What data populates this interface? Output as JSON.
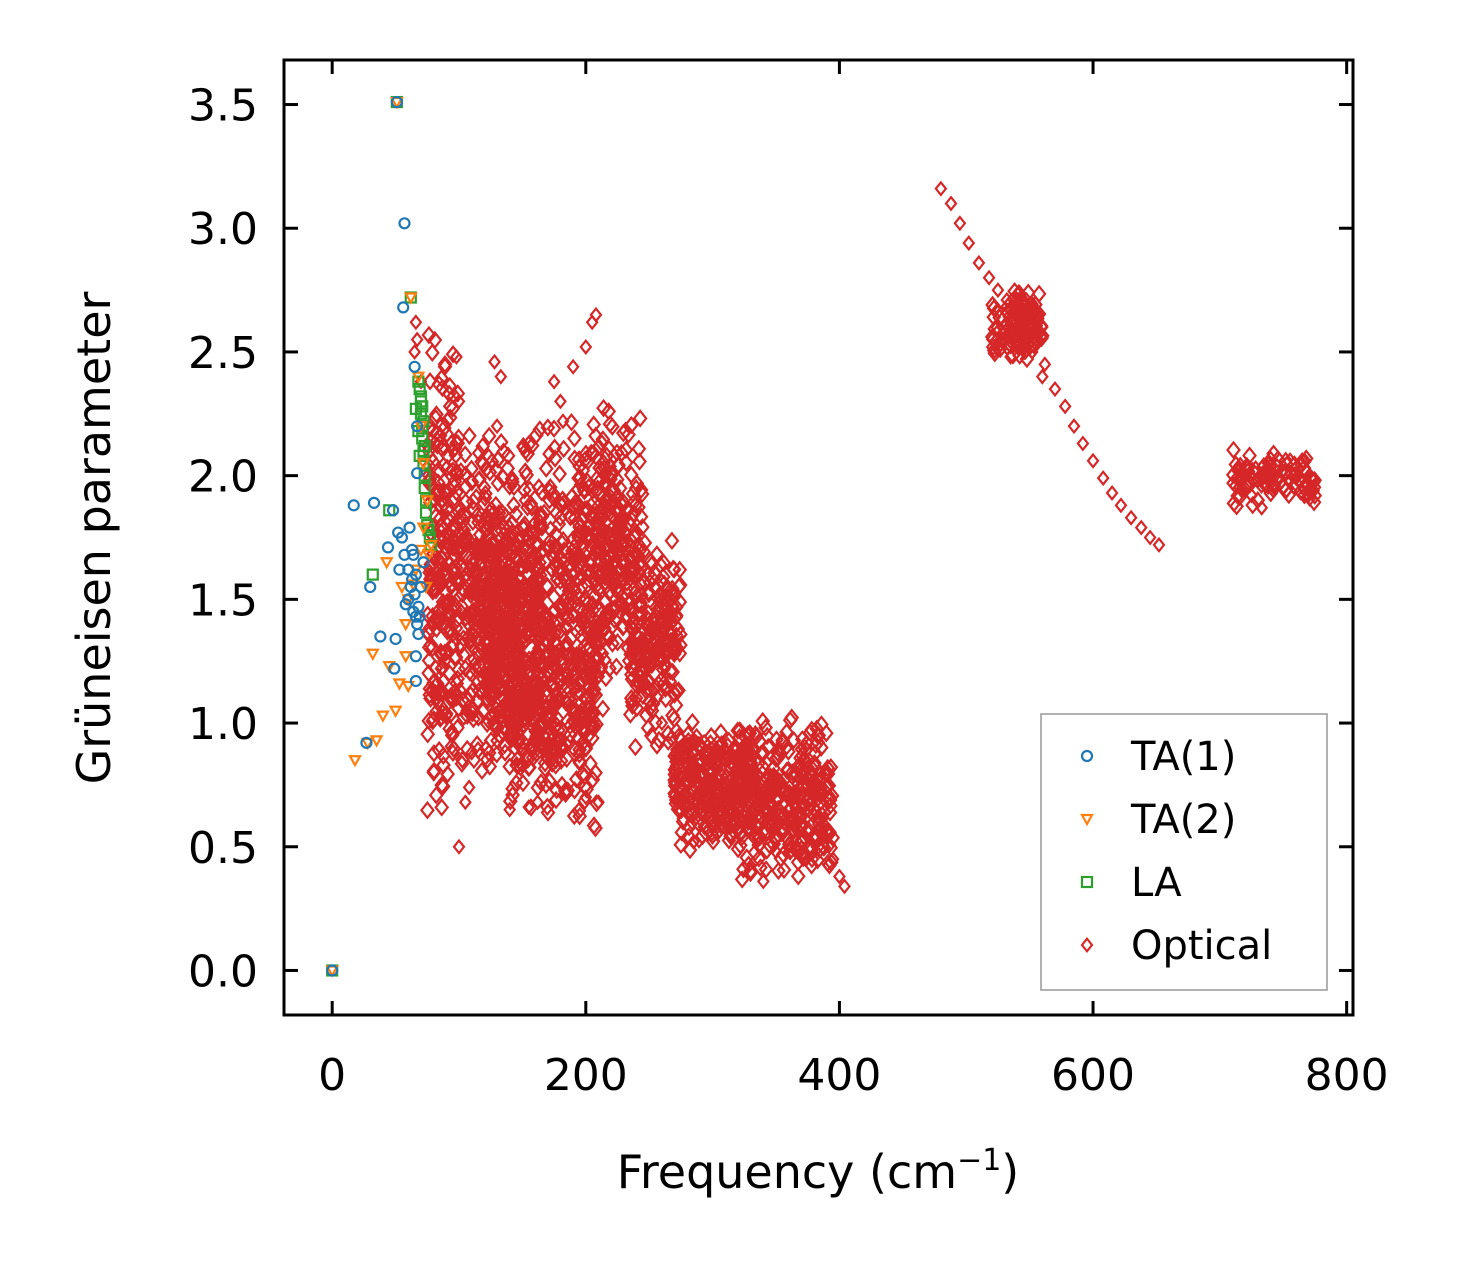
{
  "chart_data": {
    "type": "scatter",
    "title": "",
    "xlabel": "Frequency (cm",
    "xlabel_sup": "−1",
    "xlabel_close": ")",
    "ylabel": "Grüneisen parameter",
    "xlim": [
      -38,
      805
    ],
    "ylim": [
      -0.18,
      3.68
    ],
    "xticks": [
      0,
      200,
      400,
      600,
      800
    ],
    "xtick_labels": [
      "0",
      "200",
      "400",
      "600",
      "800"
    ],
    "yticks": [
      0.0,
      0.5,
      1.0,
      1.5,
      2.0,
      2.5,
      3.0,
      3.5
    ],
    "ytick_labels": [
      "0.0",
      "0.5",
      "1.0",
      "1.5",
      "2.0",
      "2.5",
      "3.0",
      "3.5"
    ],
    "grid": false,
    "legend_position": "lower-right",
    "series": [
      {
        "name": "TA(1)",
        "marker": "circle",
        "color": "#1f77b4",
        "points": [
          [
            0,
            0
          ],
          [
            17,
            1.88
          ],
          [
            33,
            1.89
          ],
          [
            38,
            1.35
          ],
          [
            48,
            1.86
          ],
          [
            50,
            1.34
          ],
          [
            52,
            1.77
          ],
          [
            30,
            1.55
          ],
          [
            44,
            1.71
          ],
          [
            55,
            1.75
          ],
          [
            57,
            1.68
          ],
          [
            58,
            1.48
          ],
          [
            60,
            1.62
          ],
          [
            61,
            1.79
          ],
          [
            62,
            1.55
          ],
          [
            63,
            1.7
          ],
          [
            64,
            1.45
          ],
          [
            65,
            1.52
          ],
          [
            66,
            1.6
          ],
          [
            67,
            1.4
          ],
          [
            68,
            1.36
          ],
          [
            69,
            1.43
          ],
          [
            70,
            1.55
          ],
          [
            72,
            1.65
          ],
          [
            53,
            1.62
          ],
          [
            49,
            1.22
          ],
          [
            66,
            1.27
          ],
          [
            66,
            1.17
          ],
          [
            27,
            0.92
          ],
          [
            57,
            3.02
          ],
          [
            56,
            2.68
          ],
          [
            65,
            2.44
          ],
          [
            67,
            2.2
          ],
          [
            67,
            2.01
          ],
          [
            51,
            3.51
          ],
          [
            60,
            1.5
          ],
          [
            63,
            1.58
          ],
          [
            64,
            1.68
          ],
          [
            66,
            1.43
          ],
          [
            68,
            1.47
          ]
        ]
      },
      {
        "name": "TA(2)",
        "marker": "triangle-down",
        "color": "#ff7f0e",
        "points": [
          [
            0,
            0
          ],
          [
            18,
            0.85
          ],
          [
            28,
            0.92
          ],
          [
            35,
            0.93
          ],
          [
            40,
            1.03
          ],
          [
            45,
            1.23
          ],
          [
            50,
            1.05
          ],
          [
            53,
            1.16
          ],
          [
            60,
            1.15
          ],
          [
            58,
            1.27
          ],
          [
            32,
            1.28
          ],
          [
            58,
            1.4
          ],
          [
            60,
            1.5
          ],
          [
            64,
            1.56
          ],
          [
            66,
            1.62
          ],
          [
            70,
            1.7
          ],
          [
            72,
            1.79
          ],
          [
            75,
            1.9
          ],
          [
            62,
            2.72
          ],
          [
            68,
            2.4
          ],
          [
            70,
            2.2
          ],
          [
            72,
            2.05
          ],
          [
            74,
            1.55
          ],
          [
            76,
            1.68
          ],
          [
            78,
            1.72
          ],
          [
            51,
            3.51
          ],
          [
            43,
            1.65
          ],
          [
            55,
            1.55
          ]
        ]
      },
      {
        "name": "LA",
        "marker": "square",
        "color": "#2ca02c",
        "points": [
          [
            0,
            0
          ],
          [
            32,
            1.6
          ],
          [
            45,
            1.86
          ],
          [
            51,
            3.51
          ],
          [
            62,
            2.72
          ],
          [
            66,
            2.27
          ],
          [
            68,
            2.38
          ],
          [
            69,
            2.35
          ],
          [
            70,
            2.3
          ],
          [
            70,
            2.25
          ],
          [
            71,
            2.2
          ],
          [
            71,
            2.15
          ],
          [
            72,
            2.1
          ],
          [
            72,
            2.05
          ],
          [
            73,
            2.0
          ],
          [
            73,
            1.95
          ],
          [
            74,
            1.9
          ],
          [
            74,
            1.85
          ],
          [
            75,
            1.8
          ],
          [
            76,
            1.78
          ],
          [
            77,
            1.75
          ],
          [
            78,
            1.72
          ],
          [
            70,
            2.32
          ],
          [
            71,
            2.28
          ],
          [
            72,
            2.22
          ],
          [
            73,
            2.12
          ],
          [
            68,
            2.18
          ],
          [
            69,
            2.08
          ]
        ]
      },
      {
        "name": "Optical",
        "marker": "diamond",
        "color": "#d62728",
        "points": [
          [
            66,
            2.62
          ],
          [
            67,
            2.55
          ],
          [
            65,
            2.5
          ],
          [
            70,
            2.38
          ],
          [
            100,
            0.5
          ],
          [
            105,
            0.68
          ],
          [
            108,
            0.74
          ],
          [
            110,
            0.88
          ],
          [
            106,
            1.05
          ],
          [
            98,
            2.48
          ],
          [
            100,
            2.3
          ],
          [
            128,
            2.46
          ],
          [
            133,
            2.4
          ],
          [
            130,
            2.2
          ],
          [
            175,
            2.38
          ],
          [
            180,
            2.3
          ],
          [
            182,
            2.22
          ],
          [
            200,
            2.52
          ],
          [
            205,
            2.62
          ],
          [
            208,
            2.65
          ],
          [
            190,
            2.44
          ],
          [
            140,
            0.65
          ],
          [
            155,
            0.66
          ],
          [
            162,
            0.68
          ],
          [
            185,
            0.72
          ],
          [
            200,
            0.7
          ],
          [
            210,
            0.68
          ],
          [
            260,
            1.0
          ],
          [
            265,
            0.92
          ],
          [
            280,
            0.75
          ],
          [
            285,
            0.52
          ],
          [
            300,
            0.65
          ],
          [
            340,
            0.36
          ],
          [
            350,
            0.48
          ],
          [
            404,
            0.34
          ],
          [
            400,
            0.38
          ],
          [
            395,
            0.45
          ],
          [
            480,
            3.16
          ],
          [
            488,
            3.1
          ],
          [
            495,
            3.02
          ],
          [
            502,
            2.94
          ],
          [
            510,
            2.86
          ],
          [
            518,
            2.8
          ],
          [
            525,
            2.75
          ],
          [
            532,
            2.71
          ],
          [
            540,
            2.69
          ],
          [
            548,
            2.65
          ],
          [
            555,
            2.55
          ],
          [
            562,
            2.45
          ],
          [
            570,
            2.35
          ],
          [
            578,
            2.28
          ],
          [
            585,
            2.2
          ],
          [
            592,
            2.13
          ],
          [
            600,
            2.06
          ],
          [
            608,
            1.99
          ],
          [
            615,
            1.93
          ],
          [
            622,
            1.88
          ],
          [
            630,
            1.83
          ],
          [
            638,
            1.79
          ],
          [
            645,
            1.75
          ],
          [
            652,
            1.72
          ],
          [
            528,
            2.55
          ],
          [
            535,
            2.48
          ],
          [
            545,
            2.6
          ],
          [
            552,
            2.5
          ],
          [
            560,
            2.4
          ],
          [
            715,
            2.02
          ],
          [
            720,
            1.95
          ],
          [
            725,
            1.92
          ],
          [
            730,
            1.98
          ],
          [
            738,
            2.05
          ],
          [
            745,
            2.04
          ],
          [
            752,
            2.01
          ],
          [
            760,
            1.99
          ],
          [
            768,
            1.97
          ],
          [
            733,
            1.87
          ],
          [
            710,
            1.97
          ],
          [
            740,
            2.07
          ]
        ]
      }
    ],
    "clusters": [
      {
        "series": "Optical",
        "x": [
          75,
          100
        ],
        "y": [
          0.8,
          2.35
        ],
        "count": 260
      },
      {
        "series": "Optical",
        "x": [
          100,
          145
        ],
        "y": [
          1.0,
          2.0
        ],
        "count": 360
      },
      {
        "series": "Optical",
        "x": [
          120,
          165
        ],
        "y": [
          1.0,
          1.7
        ],
        "count": 300
      },
      {
        "series": "Optical",
        "x": [
          140,
          210
        ],
        "y": [
          0.7,
          1.5
        ],
        "count": 380
      },
      {
        "series": "Optical",
        "x": [
          150,
          230
        ],
        "y": [
          1.3,
          2.1
        ],
        "count": 320
      },
      {
        "series": "Optical",
        "x": [
          200,
          245
        ],
        "y": [
          1.2,
          2.15
        ],
        "count": 180
      },
      {
        "series": "Optical",
        "x": [
          235,
          275
        ],
        "y": [
          1.0,
          1.65
        ],
        "count": 220
      },
      {
        "series": "Optical",
        "x": [
          270,
          330
        ],
        "y": [
          0.55,
          0.95
        ],
        "count": 300
      },
      {
        "series": "Optical",
        "x": [
          320,
          395
        ],
        "y": [
          0.45,
          0.95
        ],
        "count": 360
      },
      {
        "series": "Optical",
        "x": [
          520,
          560
        ],
        "y": [
          2.5,
          2.72
        ],
        "count": 120
      },
      {
        "series": "Optical",
        "x": [
          710,
          775
        ],
        "y": [
          1.9,
          2.08
        ],
        "count": 100
      }
    ]
  }
}
